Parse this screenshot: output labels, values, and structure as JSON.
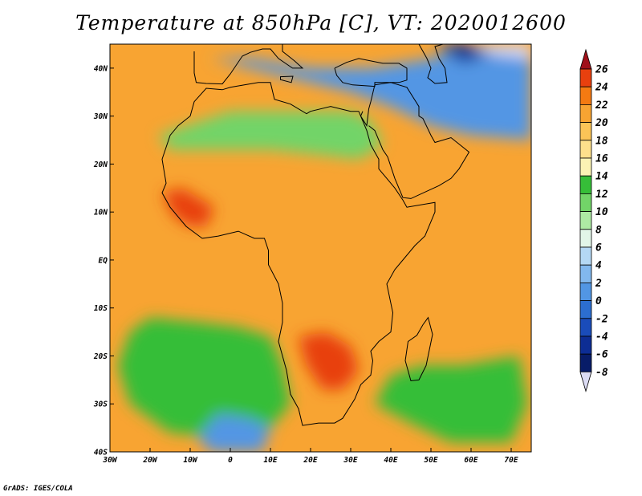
{
  "title": "Temperature at 850hPa [C], VT: 2020012600",
  "credit": "GrADS: IGES/COLA",
  "map": {
    "lon_range": [
      -30,
      75
    ],
    "lat_range": [
      -40,
      45
    ],
    "lon_ticks": [
      {
        "value": -30,
        "label": "30W"
      },
      {
        "value": -20,
        "label": "20W"
      },
      {
        "value": -10,
        "label": "10W"
      },
      {
        "value": 0,
        "label": "0"
      },
      {
        "value": 10,
        "label": "10E"
      },
      {
        "value": 20,
        "label": "20E"
      },
      {
        "value": 30,
        "label": "30E"
      },
      {
        "value": 40,
        "label": "40E"
      },
      {
        "value": 50,
        "label": "50E"
      },
      {
        "value": 60,
        "label": "60E"
      },
      {
        "value": 70,
        "label": "70E"
      }
    ],
    "lat_ticks": [
      {
        "value": 40,
        "label": "40N"
      },
      {
        "value": 30,
        "label": "30N"
      },
      {
        "value": 20,
        "label": "20N"
      },
      {
        "value": 10,
        "label": "10N"
      },
      {
        "value": 0,
        "label": "EQ"
      },
      {
        "value": -10,
        "label": "10S"
      },
      {
        "value": -20,
        "label": "20S"
      },
      {
        "value": -30,
        "label": "30S"
      },
      {
        "value": -40,
        "label": "40S"
      }
    ]
  },
  "colorbar": {
    "levels": [
      "26",
      "24",
      "22",
      "20",
      "18",
      "16",
      "14",
      "12",
      "10",
      "8",
      "6",
      "4",
      "2",
      "0",
      "-2",
      "-4",
      "-6",
      "-8"
    ],
    "colors": [
      "#a0101a",
      "#e8400e",
      "#f47a12",
      "#f8a432",
      "#fbc457",
      "#fde08c",
      "#fbf3b4",
      "#36be38",
      "#72d468",
      "#aeeaa4",
      "#e2f6e8",
      "#b4d8f4",
      "#82b8ee",
      "#5296e4",
      "#2c6ed0",
      "#1a4cba",
      "#0d2d94",
      "#081c68",
      "#dcdcf4"
    ]
  },
  "regions": [
    {
      "name": "sahara-green",
      "color": "#72d468",
      "poly": [
        [
          -18,
          26
        ],
        [
          0,
          31
        ],
        [
          15,
          31
        ],
        [
          30,
          31
        ],
        [
          35,
          29
        ],
        [
          38,
          24
        ],
        [
          32,
          21
        ],
        [
          22,
          22
        ],
        [
          10,
          23
        ],
        [
          -5,
          23
        ],
        [
          -15,
          23
        ]
      ]
    },
    {
      "name": "west-africa-hot",
      "color": "#e8400e",
      "poly": [
        [
          -17,
          14
        ],
        [
          -12,
          15
        ],
        [
          -8,
          13
        ],
        [
          -4,
          11
        ],
        [
          -6,
          7
        ],
        [
          -10,
          7
        ],
        [
          -14,
          9
        ]
      ]
    },
    {
      "name": "south-africa-hot",
      "color": "#e8400e",
      "poly": [
        [
          17,
          -16
        ],
        [
          24,
          -15
        ],
        [
          30,
          -18
        ],
        [
          32,
          -23
        ],
        [
          28,
          -27
        ],
        [
          23,
          -27
        ],
        [
          19,
          -22
        ]
      ]
    },
    {
      "name": "south-atlantic-green",
      "color": "#36be38",
      "poly": [
        [
          -20,
          -12
        ],
        [
          -8,
          -13
        ],
        [
          2,
          -14
        ],
        [
          10,
          -16
        ],
        [
          13,
          -22
        ],
        [
          15,
          -30
        ],
        [
          10,
          -35
        ],
        [
          0,
          -37
        ],
        [
          -15,
          -36
        ],
        [
          -25,
          -30
        ],
        [
          -28,
          -22
        ],
        [
          -25,
          -15
        ]
      ]
    },
    {
      "name": "indian-ocean-green",
      "color": "#36be38",
      "poly": [
        [
          40,
          -24
        ],
        [
          48,
          -22
        ],
        [
          58,
          -22
        ],
        [
          72,
          -20
        ],
        [
          74,
          -30
        ],
        [
          70,
          -38
        ],
        [
          55,
          -38
        ],
        [
          45,
          -34
        ],
        [
          36,
          -30
        ]
      ]
    },
    {
      "name": "south-atlantic-cold",
      "color": "#5296e4",
      "poly": [
        [
          -3,
          -32
        ],
        [
          5,
          -33
        ],
        [
          10,
          -35
        ],
        [
          8,
          -40
        ],
        [
          -5,
          -40
        ],
        [
          -8,
          -37
        ]
      ]
    },
    {
      "name": "north-cold",
      "color": "#5296e4",
      "poly": [
        [
          -5,
          42
        ],
        [
          5,
          42
        ],
        [
          20,
          40
        ],
        [
          35,
          40
        ],
        [
          50,
          42
        ],
        [
          60,
          45
        ],
        [
          75,
          45
        ],
        [
          75,
          25
        ],
        [
          60,
          26
        ],
        [
          50,
          28
        ],
        [
          40,
          32
        ],
        [
          30,
          35
        ],
        [
          20,
          37
        ],
        [
          10,
          39
        ]
      ]
    },
    {
      "name": "north-deep-cold",
      "color": "#0d2d94",
      "poly": [
        [
          51,
          45
        ],
        [
          58,
          41
        ],
        [
          65,
          43
        ],
        [
          72,
          45
        ]
      ]
    },
    {
      "name": "north-coldest",
      "color": "#dcdcf4",
      "poly": [
        [
          60,
          45
        ],
        [
          65,
          43
        ],
        [
          75,
          42
        ],
        [
          75,
          45
        ]
      ]
    }
  ],
  "coastline": [
    [
      -17,
      21
    ],
    [
      -16,
      16
    ],
    [
      -17,
      14
    ],
    [
      -15,
      11
    ],
    [
      -13,
      9
    ],
    [
      -11,
      7
    ],
    [
      -7,
      4.5
    ],
    [
      -3,
      5
    ],
    [
      2,
      6
    ],
    [
      6,
      4.5
    ],
    [
      8.5,
      4.5
    ],
    [
      9.5,
      2
    ],
    [
      9.5,
      -1
    ],
    [
      12,
      -5
    ],
    [
      13,
      -9
    ],
    [
      13,
      -13
    ],
    [
      12,
      -17
    ],
    [
      14,
      -23
    ],
    [
      15,
      -28
    ],
    [
      17,
      -31
    ],
    [
      18,
      -34.5
    ],
    [
      22,
      -34
    ],
    [
      26,
      -34
    ],
    [
      28,
      -33
    ],
    [
      31,
      -29
    ],
    [
      32.5,
      -26
    ],
    [
      35,
      -24
    ],
    [
      35.5,
      -21
    ],
    [
      35,
      -19
    ],
    [
      37,
      -17
    ],
    [
      40,
      -15
    ],
    [
      40.5,
      -11
    ],
    [
      39.5,
      -7
    ],
    [
      39,
      -5
    ],
    [
      41,
      -2
    ],
    [
      44,
      1
    ],
    [
      46,
      3
    ],
    [
      48.5,
      5
    ],
    [
      51,
      10
    ],
    [
      51,
      12
    ],
    [
      44,
      11
    ],
    [
      43,
      12.5
    ],
    [
      41,
      15
    ],
    [
      39,
      17
    ],
    [
      37,
      19
    ],
    [
      37,
      21
    ],
    [
      35,
      24
    ],
    [
      34,
      27
    ],
    [
      32,
      31
    ],
    [
      30,
      31
    ],
    [
      25,
      32
    ],
    [
      20,
      31
    ],
    [
      19,
      30.5
    ],
    [
      15,
      32.5
    ],
    [
      11,
      33.5
    ],
    [
      10,
      37
    ],
    [
      7,
      37
    ],
    [
      0,
      36
    ],
    [
      -2,
      35.5
    ],
    [
      -6,
      35.8
    ],
    [
      -9,
      33
    ],
    [
      -10,
      30
    ],
    [
      -13,
      28
    ],
    [
      -15,
      26
    ],
    [
      -17,
      21
    ]
  ],
  "madagascar": [
    [
      49.3,
      -12
    ],
    [
      50.4,
      -15.5
    ],
    [
      48.8,
      -22
    ],
    [
      47,
      -25
    ],
    [
      45,
      -25.2
    ],
    [
      43.6,
      -21
    ],
    [
      44.3,
      -17
    ],
    [
      46.5,
      -15.7
    ],
    [
      48,
      -13.5
    ]
  ],
  "arabia": [
    [
      34.5,
      28
    ],
    [
      36,
      27
    ],
    [
      38,
      23
    ],
    [
      39.2,
      21.5
    ],
    [
      41,
      17
    ],
    [
      43,
      13
    ],
    [
      45,
      12.8
    ],
    [
      52,
      15.5
    ],
    [
      55,
      17
    ],
    [
      57,
      19
    ],
    [
      59.5,
      22.5
    ],
    [
      56.5,
      24.5
    ],
    [
      55,
      25.5
    ],
    [
      51,
      24.5
    ],
    [
      50,
      26
    ],
    [
      48,
      29.5
    ],
    [
      47,
      30
    ],
    [
      47,
      32
    ],
    [
      44,
      36
    ],
    [
      40,
      37
    ],
    [
      36,
      36.5
    ],
    [
      35,
      33
    ],
    [
      34.5,
      31.5
    ],
    [
      34,
      28
    ],
    [
      32.5,
      30
    ],
    [
      33,
      31
    ]
  ],
  "europe": [
    [
      -9,
      43.5
    ],
    [
      -9,
      39
    ],
    [
      -8.5,
      37
    ],
    [
      -6,
      36.8
    ],
    [
      -2,
      36.7
    ],
    [
      0,
      38.8
    ],
    [
      3,
      42.5
    ],
    [
      5,
      43.3
    ],
    [
      8,
      44
    ],
    [
      10,
      44
    ],
    [
      12,
      42
    ],
    [
      15.5,
      40
    ],
    [
      18,
      40
    ],
    [
      16,
      41.5
    ],
    [
      13,
      43.5
    ],
    [
      13,
      45
    ]
  ],
  "turkey": [
    [
      26,
      40
    ],
    [
      26.5,
      38.5
    ],
    [
      28,
      37
    ],
    [
      30.5,
      36.5
    ],
    [
      36,
      36.2
    ],
    [
      36,
      37
    ],
    [
      40,
      37
    ],
    [
      42,
      37
    ],
    [
      44,
      37.5
    ],
    [
      44,
      40
    ],
    [
      42,
      41
    ],
    [
      38,
      41
    ],
    [
      32,
      42
    ],
    [
      29,
      41.2
    ],
    [
      26,
      40
    ]
  ],
  "caspian": [
    [
      47,
      45
    ],
    [
      49,
      42
    ],
    [
      50,
      40
    ],
    [
      49.2,
      38
    ],
    [
      51,
      36.8
    ],
    [
      54,
      37
    ],
    [
      53.5,
      40
    ],
    [
      52,
      42
    ],
    [
      51,
      44.5
    ],
    [
      53,
      45
    ]
  ],
  "italy_sicily": [
    [
      12.5,
      38.2
    ],
    [
      15.6,
      38.3
    ],
    [
      15.2,
      37
    ],
    [
      12.5,
      37.6
    ]
  ]
}
